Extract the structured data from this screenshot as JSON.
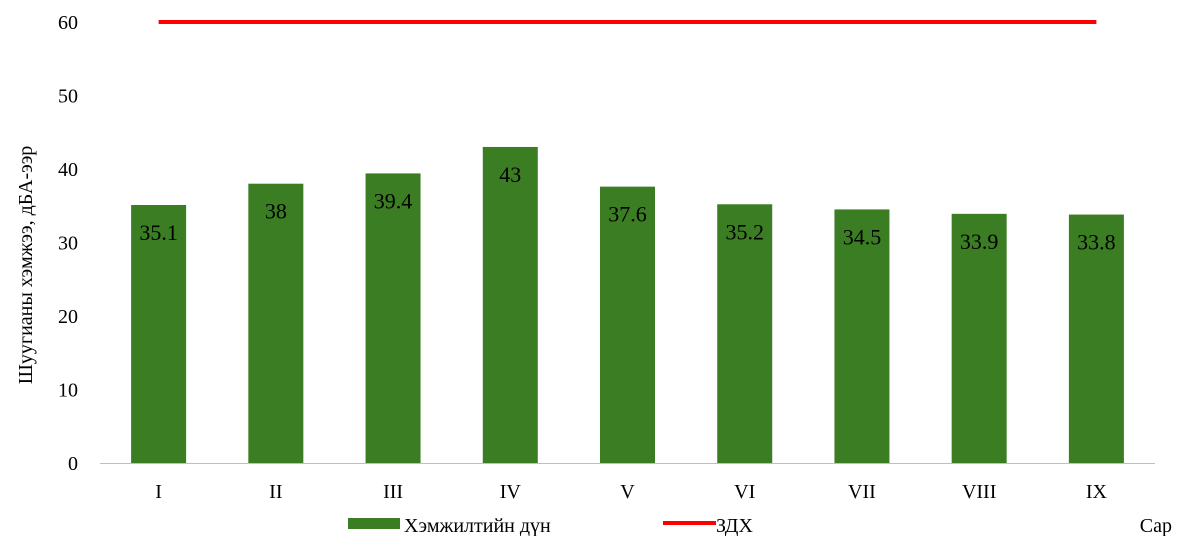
{
  "chart_data": {
    "type": "bar",
    "categories": [
      "I",
      "II",
      "III",
      "IV",
      "V",
      "VI",
      "VII",
      "VIII",
      "IX"
    ],
    "series": [
      {
        "name": "Хэмжилтийн дүн",
        "type": "bar",
        "color": "#3b7d23",
        "values": [
          35.1,
          38,
          39.4,
          43,
          37.6,
          35.2,
          34.5,
          33.9,
          33.8
        ]
      },
      {
        "name": "ЗДХ",
        "type": "line",
        "color": "#ff0000",
        "values": [
          60,
          60,
          60,
          60,
          60,
          60,
          60,
          60,
          60
        ]
      }
    ],
    "data_labels": [
      "35.1",
      "38",
      "39.4",
      "43",
      "37.6",
      "35.2",
      "34.5",
      "33.9",
      "33.8"
    ],
    "title": "",
    "xlabel": "Сар",
    "ylabel": "Шуугианы хэмжээ, дБА-ээр",
    "ylim": [
      0,
      60
    ],
    "yticks": [
      0,
      10,
      20,
      30,
      40,
      50,
      60
    ],
    "grid": false,
    "legend_position": "bottom"
  }
}
